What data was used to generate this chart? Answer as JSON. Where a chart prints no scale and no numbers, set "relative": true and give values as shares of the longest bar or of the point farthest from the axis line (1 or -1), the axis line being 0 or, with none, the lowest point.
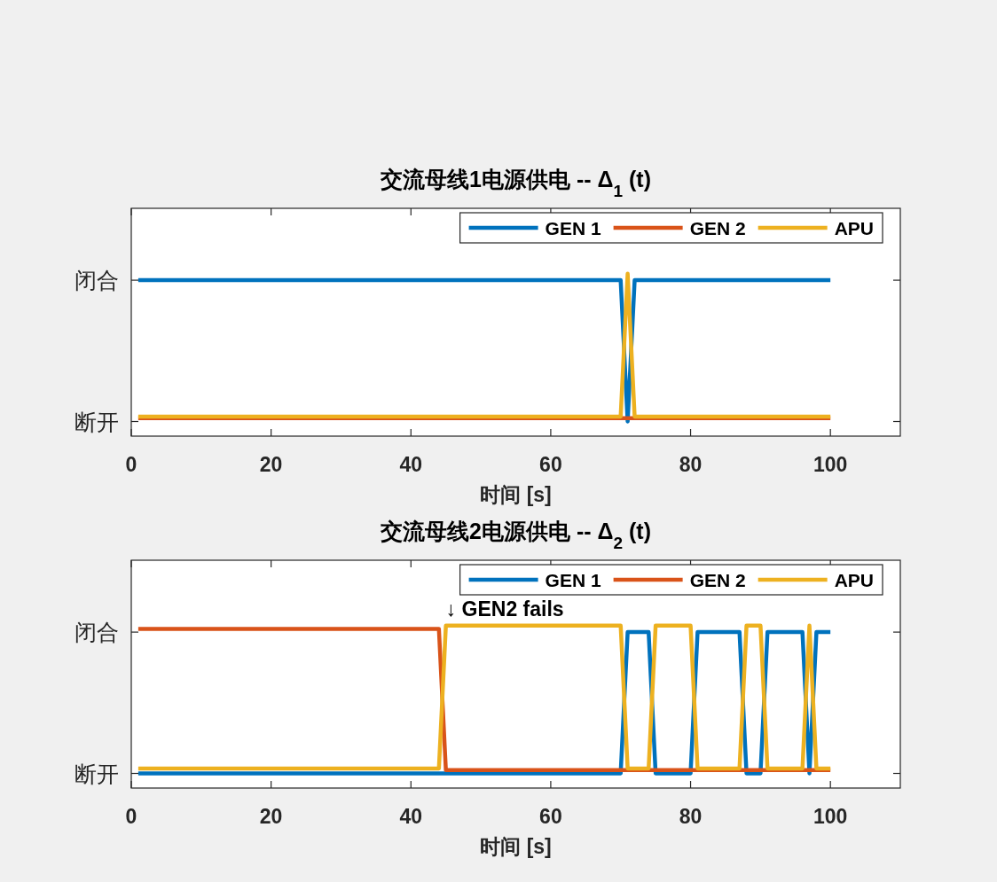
{
  "chart_data": [
    {
      "type": "line",
      "relative": true,
      "title": "交流母线1电源供电 -- Δ$_{1}$ (t)",
      "xlabel": "时间 [s]",
      "xlim": [
        0,
        110
      ],
      "xticks": [
        0,
        20,
        40,
        60,
        80,
        100
      ],
      "grid": false,
      "legend": "top right",
      "line_style": "solid",
      "annotations": [
        "闭合",
        "断开"
      ],
      "series": [
        {
          "name": "GEN 1",
          "color": "#0072bd",
          "x": [
            1,
            70,
            71,
            72,
            100
          ],
          "values": [
            0.96,
            0.96,
            0.09,
            0.96,
            0.96
          ]
        },
        {
          "name": "GEN 2",
          "color": "#d95319",
          "x": [
            1,
            100
          ],
          "values": [
            0.11,
            0.11
          ]
        },
        {
          "name": "APU",
          "color": "#edb120",
          "x": [
            1,
            70,
            71,
            72,
            100
          ],
          "values": [
            0.12,
            0.12,
            1,
            0.12,
            0.12
          ]
        }
      ]
    },
    {
      "type": "line",
      "relative": true,
      "title": "交流母线2电源供电 -- Δ$_{2}$ (t)",
      "xlabel": "时间 [s]",
      "xlim": [
        0,
        110
      ],
      "xticks": [
        0,
        20,
        40,
        60,
        80,
        100
      ],
      "grid": false,
      "legend": "top right",
      "line_style": "solid",
      "annotations": [
        "闭合",
        "断开",
        {
          "text": "↓ GEN2 fails",
          "x": 45,
          "y": 1
        }
      ],
      "series": [
        {
          "name": "GEN 1",
          "color": "#0072bd",
          "x": [
            1,
            70,
            71,
            74,
            75,
            80,
            81,
            87,
            88,
            90,
            91,
            96,
            97,
            98,
            100
          ],
          "values": [
            0.09,
            0.09,
            0.96,
            0.96,
            0.09,
            0.09,
            0.96,
            0.96,
            0.09,
            0.09,
            0.96,
            0.96,
            0.09,
            0.96,
            0.96
          ]
        },
        {
          "name": "GEN 2",
          "color": "#d95319",
          "x": [
            1,
            44,
            45,
            100
          ],
          "values": [
            0.98,
            0.98,
            0.11,
            0.11
          ]
        },
        {
          "name": "APU",
          "color": "#edb120",
          "x": [
            1,
            44,
            45,
            70,
            71,
            74,
            75,
            80,
            81,
            87,
            88,
            90,
            91,
            96,
            97,
            98,
            100
          ],
          "values": [
            0.12,
            0.12,
            1,
            1,
            0.12,
            0.12,
            1,
            1,
            0.12,
            0.12,
            1,
            1,
            0.12,
            0.12,
            1,
            0.12,
            0.12
          ]
        }
      ]
    }
  ]
}
